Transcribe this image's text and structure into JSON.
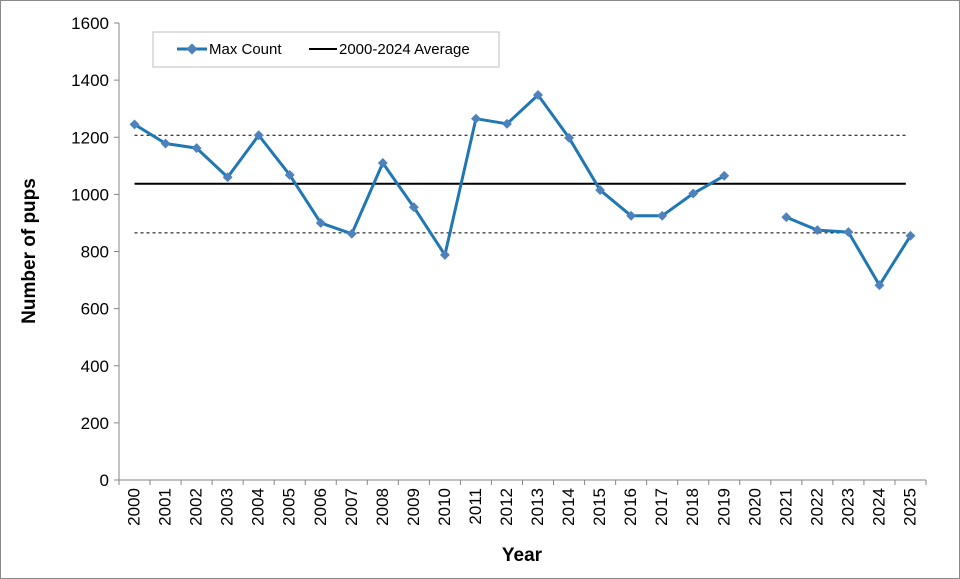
{
  "chart_data": {
    "type": "line",
    "title": "",
    "xlabel": "Year",
    "ylabel": "Number of pups",
    "ylim": [
      0,
      1600
    ],
    "yticks": [
      0,
      200,
      400,
      600,
      800,
      1000,
      1200,
      1400,
      1600
    ],
    "categories": [
      "2000",
      "2001",
      "2002",
      "2003",
      "2004",
      "2005",
      "2006",
      "2007",
      "2008",
      "2009",
      "2010",
      "2011",
      "2012",
      "2013",
      "2014",
      "2015",
      "2016",
      "2017",
      "2018",
      "2019",
      "2020",
      "2021",
      "2022",
      "2023",
      "2024",
      "2025"
    ],
    "series": [
      {
        "name": "Max Count",
        "color": "#1f77b4",
        "marker_color": "#4f81bd",
        "values": [
          1245,
          1178,
          1162,
          1060,
          1207,
          1068,
          900,
          862,
          1110,
          955,
          788,
          1265,
          1247,
          1348,
          1198,
          1015,
          925,
          925,
          1003,
          1065,
          null,
          920,
          875,
          868,
          682,
          855
        ]
      },
      {
        "name": "2000-2024 Average",
        "color": "#000000",
        "value": 1037
      }
    ],
    "reference_lines": [
      {
        "style": "dashed",
        "value": 1207
      },
      {
        "style": "dashed",
        "value": 865
      }
    ],
    "grid": false,
    "legend_position": "top-left"
  }
}
